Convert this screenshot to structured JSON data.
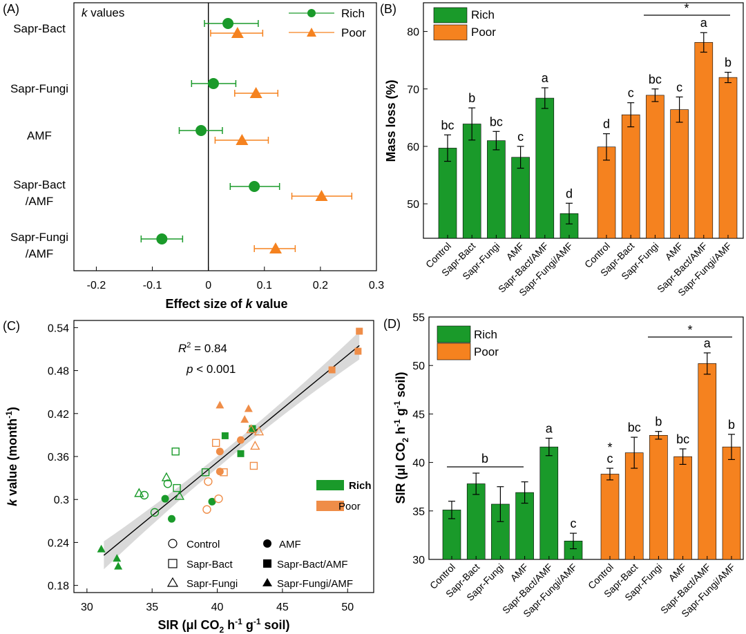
{
  "colors": {
    "rich": "#1a9a2a",
    "poor": "#f5821f",
    "poor_scatter": "#ef8d48"
  },
  "chart_data": [
    {
      "panel": "(A)",
      "type": "forest",
      "title": "k values",
      "xlabel": "Effect size of k value",
      "xlim": [
        -0.24,
        0.3
      ],
      "xticks": [
        "-0.2",
        "-0.1",
        "0",
        "0.1",
        "0.2",
        "0.3"
      ],
      "categories": [
        "Sapr-Bact",
        "Sapr-Fungi",
        "AMF",
        "Sapr-Bact /AMF",
        "Sapr-Fungi /AMF"
      ],
      "category_lines": [
        [
          "Sapr-Bact"
        ],
        [
          "Sapr-Fungi"
        ],
        [
          "AMF"
        ],
        [
          "Sapr-Bact",
          "/AMF"
        ],
        [
          "Sapr-Fungi",
          "/AMF"
        ]
      ],
      "series": [
        {
          "name": "Rich",
          "marker": "circle",
          "values": [
            0.035,
            0.009,
            -0.013,
            0.082,
            -0.083
          ],
          "lower": [
            -0.007,
            -0.03,
            -0.052,
            0.039,
            -0.12
          ],
          "upper": [
            0.089,
            0.049,
            0.025,
            0.127,
            -0.046
          ]
        },
        {
          "name": "Poor",
          "marker": "triangle",
          "values": [
            0.052,
            0.085,
            0.06,
            0.202,
            0.12
          ],
          "lower": [
            0.004,
            0.047,
            0.012,
            0.149,
            0.082
          ],
          "upper": [
            0.097,
            0.124,
            0.107,
            0.256,
            0.155
          ]
        }
      ]
    },
    {
      "panel": "(B)",
      "type": "bar",
      "ylabel": "Mass loss (%)",
      "ylim": [
        44,
        85
      ],
      "yticks": [
        "50",
        "60",
        "70",
        "80"
      ],
      "categories": [
        "Control",
        "Sapr-Bact",
        "Sapr-Fungi",
        "AMF",
        "Sapr-Bact/AMF",
        "Sapr-Fungi/AMF"
      ],
      "series": [
        {
          "name": "Rich",
          "values": [
            59.7,
            63.9,
            61.0,
            58.1,
            68.4,
            48.3
          ],
          "errors": [
            2.3,
            2.8,
            1.6,
            1.9,
            1.8,
            1.8
          ],
          "letters": [
            "bc",
            "b",
            "bc",
            "c",
            "a",
            "d"
          ]
        },
        {
          "name": "Poor",
          "values": [
            59.9,
            65.5,
            68.9,
            66.4,
            78.1,
            72.0
          ],
          "errors": [
            2.3,
            2.1,
            1.1,
            2.2,
            1.7,
            0.9
          ],
          "letters": [
            "d",
            "c",
            "bc",
            "c",
            "a",
            "b"
          ]
        }
      ],
      "annotations": {
        "poor_line": "*"
      }
    },
    {
      "panel": "(C)",
      "type": "scatter",
      "xlabel": "SIR (μl CO2 h-1 g-1 soil)",
      "ylabel": "k value (month-1)",
      "xlim": [
        29,
        52
      ],
      "ylim": [
        0.17,
        0.55
      ],
      "xticks": [
        "30",
        "35",
        "40",
        "45",
        "50"
      ],
      "yticks": [
        "0.18",
        "0.24",
        "0.3",
        "0.36",
        "0.42",
        "0.48",
        "0.54"
      ],
      "stats": {
        "r2": "R2 = 0.84",
        "p": "p < 0.001"
      },
      "regression": {
        "x": [
          31.3,
          50.9
        ],
        "y": [
          0.222,
          0.515
        ]
      },
      "legend_groups": [
        "Rich",
        "Poor"
      ],
      "legend_treatments": [
        "Control",
        "Sapr-Bact",
        "Sapr-Fungi",
        "AMF",
        "Sapr-Bact/AMF",
        "Sapr-Fungi/AMF"
      ],
      "points": [
        {
          "g": "rich",
          "t": "control",
          "x": 34.4,
          "y": 0.306
        },
        {
          "g": "rich",
          "t": "control",
          "x": 35.2,
          "y": 0.282
        },
        {
          "g": "rich",
          "t": "control",
          "x": 36.2,
          "y": 0.322
        },
        {
          "g": "rich",
          "t": "bact",
          "x": 36.8,
          "y": 0.367
        },
        {
          "g": "rich",
          "t": "bact",
          "x": 36.9,
          "y": 0.316
        },
        {
          "g": "rich",
          "t": "bact",
          "x": 39.1,
          "y": 0.338
        },
        {
          "g": "rich",
          "t": "fungi",
          "x": 34.0,
          "y": 0.309
        },
        {
          "g": "rich",
          "t": "fungi",
          "x": 36.1,
          "y": 0.331
        },
        {
          "g": "rich",
          "t": "fungi",
          "x": 37.1,
          "y": 0.305
        },
        {
          "g": "rich",
          "t": "amf",
          "x": 36.0,
          "y": 0.301
        },
        {
          "g": "rich",
          "t": "amf",
          "x": 36.5,
          "y": 0.273
        },
        {
          "g": "rich",
          "t": "amf",
          "x": 39.6,
          "y": 0.297
        },
        {
          "g": "rich",
          "t": "bactamf",
          "x": 40.6,
          "y": 0.389
        },
        {
          "g": "rich",
          "t": "bactamf",
          "x": 42.7,
          "y": 0.399
        },
        {
          "g": "rich",
          "t": "bactamf",
          "x": 41.8,
          "y": 0.364
        },
        {
          "g": "rich",
          "t": "fungiamf",
          "x": 31.1,
          "y": 0.231
        },
        {
          "g": "rich",
          "t": "fungiamf",
          "x": 32.3,
          "y": 0.218
        },
        {
          "g": "rich",
          "t": "fungiamf",
          "x": 32.4,
          "y": 0.207
        },
        {
          "g": "poor",
          "t": "control",
          "x": 39.3,
          "y": 0.325
        },
        {
          "g": "poor",
          "t": "control",
          "x": 39.2,
          "y": 0.286
        },
        {
          "g": "poor",
          "t": "control",
          "x": 40.1,
          "y": 0.301
        },
        {
          "g": "poor",
          "t": "bact",
          "x": 39.9,
          "y": 0.379
        },
        {
          "g": "poor",
          "t": "bact",
          "x": 40.5,
          "y": 0.338
        },
        {
          "g": "poor",
          "t": "bact",
          "x": 42.8,
          "y": 0.347
        },
        {
          "g": "poor",
          "t": "fungi",
          "x": 42.6,
          "y": 0.398
        },
        {
          "g": "poor",
          "t": "fungi",
          "x": 42.9,
          "y": 0.375
        },
        {
          "g": "poor",
          "t": "fungi",
          "x": 43.2,
          "y": 0.395
        },
        {
          "g": "poor",
          "t": "amf",
          "x": 40.2,
          "y": 0.367
        },
        {
          "g": "poor",
          "t": "amf",
          "x": 41.8,
          "y": 0.383
        },
        {
          "g": "poor",
          "t": "amf",
          "x": 40.2,
          "y": 0.339
        },
        {
          "g": "poor",
          "t": "bactamf",
          "x": 48.8,
          "y": 0.481
        },
        {
          "g": "poor",
          "t": "bactamf",
          "x": 50.8,
          "y": 0.507
        },
        {
          "g": "poor",
          "t": "bactamf",
          "x": 50.9,
          "y": 0.535
        },
        {
          "g": "poor",
          "t": "fungiamf",
          "x": 40.2,
          "y": 0.432
        },
        {
          "g": "poor",
          "t": "fungiamf",
          "x": 42.4,
          "y": 0.427
        },
        {
          "g": "poor",
          "t": "fungiamf",
          "x": 42.1,
          "y": 0.412
        }
      ]
    },
    {
      "panel": "(D)",
      "type": "bar",
      "ylabel": "SIR (μl CO2 h-1 g-1 soil)",
      "ylim": [
        30,
        55
      ],
      "yticks": [
        "30",
        "35",
        "40",
        "45",
        "50",
        "55"
      ],
      "categories": [
        "Control",
        "Sapr-Bact",
        "Sapr-Fungi",
        "AMF",
        "Sapr-Bact/AMF",
        "Sapr-Fungi/AMF"
      ],
      "series": [
        {
          "name": "Rich",
          "values": [
            35.1,
            37.8,
            35.7,
            36.9,
            41.6,
            31.9
          ],
          "errors": [
            0.9,
            1.1,
            1.8,
            1.1,
            0.9,
            0.8
          ],
          "letters": [
            "",
            "",
            "",
            "",
            "a",
            "c"
          ]
        },
        {
          "name": "Poor",
          "values": [
            38.8,
            41.0,
            42.8,
            40.6,
            50.2,
            41.6
          ],
          "errors": [
            0.6,
            1.6,
            0.4,
            0.8,
            1.1,
            1.3
          ],
          "letters": [
            "c",
            "bc",
            "b",
            "bc",
            "a",
            "b"
          ]
        }
      ],
      "annotations": {
        "rich_group_letter": "b",
        "poor_line": "*",
        "control_star": "*"
      }
    }
  ]
}
